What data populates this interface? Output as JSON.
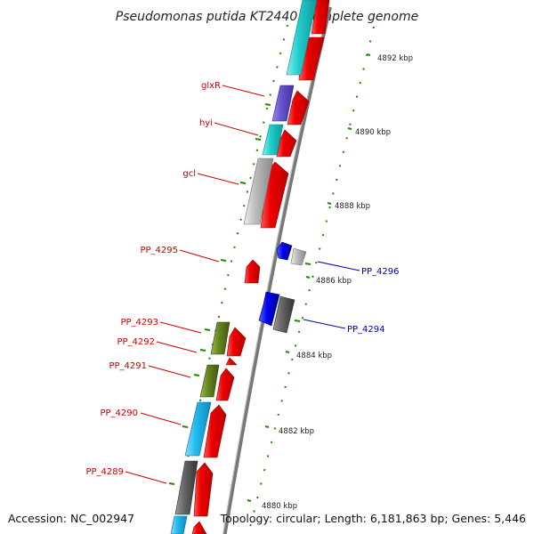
{
  "title": "Pseudomonas putida KT2440, complete genome",
  "accession": "Accession: NC_002947",
  "topology": "Topology: circular; Length: 6,181,863 bp; Genes: 5,446",
  "scale_labels": [
    "4892 kbp",
    "4890 kbp",
    "4888 kbp",
    "4886 kbp",
    "4884 kbp",
    "4882 kbp",
    "4880 kbp"
  ],
  "gene_labels_left": [
    "glxR",
    "hyi",
    "gcl",
    "PP_4295",
    "PP_4293",
    "PP_4292",
    "PP_4291",
    "PP_4290",
    "PP_4289"
  ],
  "gene_labels_right": [
    "PP_4296",
    "PP_4294"
  ],
  "colors": {
    "gene_red": "#ee0000",
    "gene_blue": "#0000ee",
    "cyan": "#22cccc",
    "sky": "#22bbee",
    "purple": "#6655cc",
    "olive": "#668822",
    "gray_light": "#bbbbbb",
    "gray_dark": "#666666",
    "backbone": "#888888",
    "ticks": "#228800",
    "label_red": "#cc0000",
    "label_blue": "#0000aa"
  }
}
